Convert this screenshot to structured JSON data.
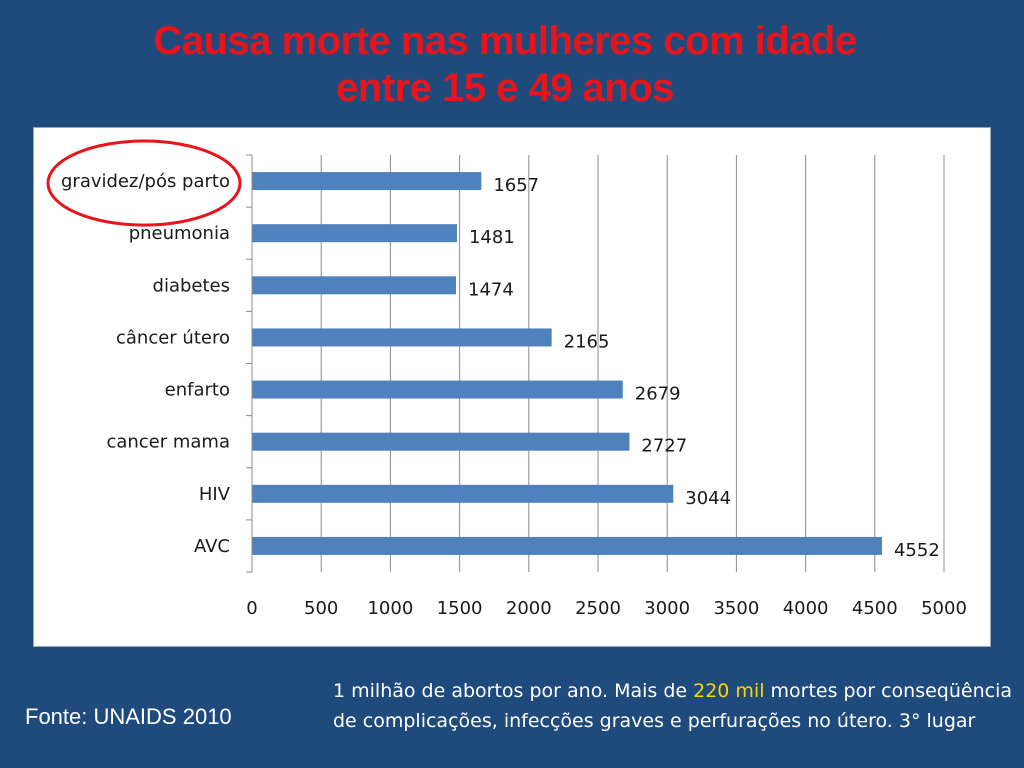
{
  "slide": {
    "title_line1": "Causa morte nas mulheres com idade",
    "title_line2": "entre 15 e 49 anos",
    "source": "Fonte:  UNAIDS 2010",
    "note_part1": "1 milhão de abortos por ano. Mais de ",
    "note_highlight": "220 mil",
    "note_part2": "  mortes por conseqüência de complicações, infecções graves e perfurações no útero.   3° lugar",
    "colors": {
      "background": "#1f4a7c",
      "title": "#e8141c",
      "bar": "#4f81bd",
      "highlight": "#ffd400",
      "circle": "#e8141c"
    }
  },
  "chart_data": {
    "type": "bar",
    "orientation": "horizontal",
    "categories": [
      "gravidez/pós parto",
      "pneumonia",
      "diabetes",
      "câncer útero",
      "enfarto",
      "cancer mama",
      "HIV",
      "AVC"
    ],
    "values": [
      1657,
      1481,
      1474,
      2165,
      2679,
      2727,
      3044,
      4552
    ],
    "xlim": [
      0,
      5000
    ],
    "xticks": [
      0,
      500,
      1000,
      1500,
      2000,
      2500,
      3000,
      3500,
      4000,
      4500,
      5000
    ],
    "grid": "vertical",
    "highlighted_category": "gravidez/pós parto",
    "title": "",
    "xlabel": "",
    "ylabel": ""
  }
}
